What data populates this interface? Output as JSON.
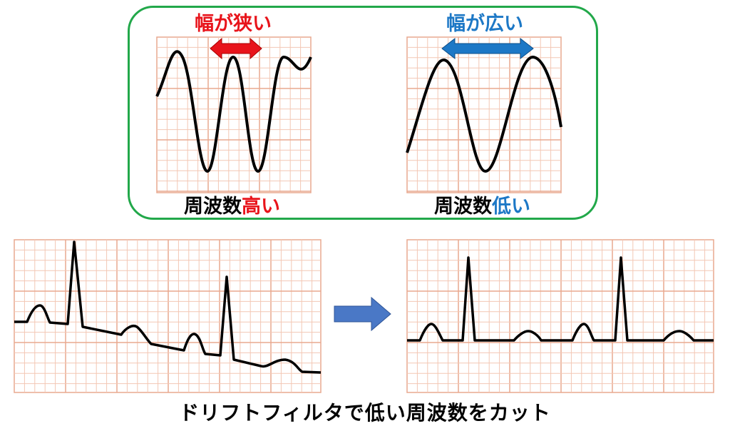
{
  "top_panel": {
    "left": {
      "width_label": "幅が狭い",
      "width_label_color": "#e8141b",
      "caption_prefix": "周波数",
      "caption_highlight": "高い",
      "highlight_color": "#e8141b"
    },
    "right": {
      "width_label": "幅が広い",
      "width_label_color": "#1d78c6",
      "caption_prefix": "周波数",
      "caption_highlight": "低い",
      "highlight_color": "#1d78c6"
    },
    "border_color": "#22a84a"
  },
  "colors": {
    "grid_fine": "#f3c7b4",
    "grid_major": "#e9a98f",
    "trace": "#000000",
    "process_arrow": "#4a78c6"
  },
  "footer": {
    "text": "ドリフトフィルタで低い周波数をカット"
  }
}
